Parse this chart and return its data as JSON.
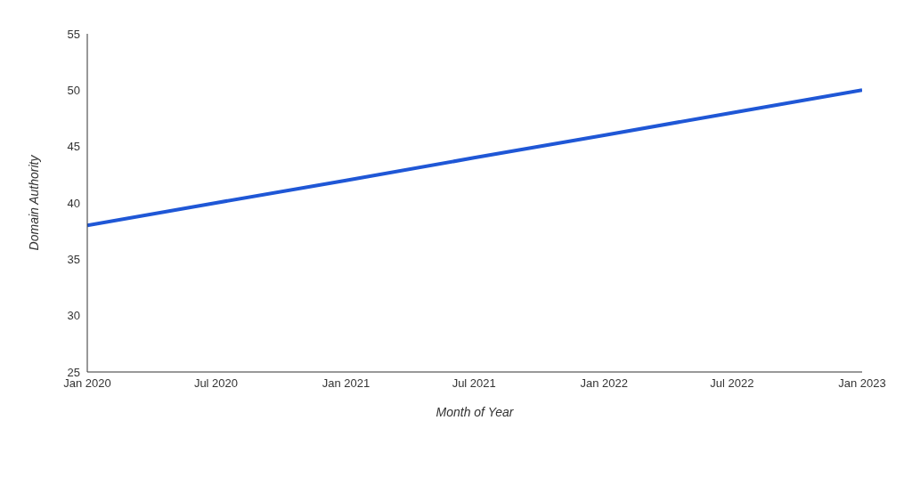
{
  "chart_data": {
    "type": "line",
    "xlabel": "Month of Year",
    "ylabel": "Domain Authority",
    "x": [
      "2020-01",
      "2020-07",
      "2021-01",
      "2021-07",
      "2022-01",
      "2022-07",
      "2023-01"
    ],
    "series": [
      {
        "color": "#1f57d6",
        "values": [
          38,
          40,
          42,
          44,
          46,
          48,
          50
        ]
      }
    ],
    "xlim": [
      "2020-01",
      "2023-01"
    ],
    "xticks": [
      {
        "value": "2020-01",
        "label": "Jan 2020"
      },
      {
        "value": "2020-07",
        "label": "Jul 2020"
      },
      {
        "value": "2021-01",
        "label": "Jan 2021"
      },
      {
        "value": "2021-07",
        "label": "Jul 2021"
      },
      {
        "value": "2022-01",
        "label": "Jan 2022"
      },
      {
        "value": "2022-07",
        "label": "Jul 2022"
      },
      {
        "value": "2023-01",
        "label": "Jan 2023"
      }
    ],
    "ylim": [
      25,
      55
    ],
    "yticks": [
      25,
      30,
      35,
      40,
      45,
      50,
      55
    ],
    "grid": false,
    "legend": false,
    "marker": "none",
    "line_style": "solid"
  }
}
